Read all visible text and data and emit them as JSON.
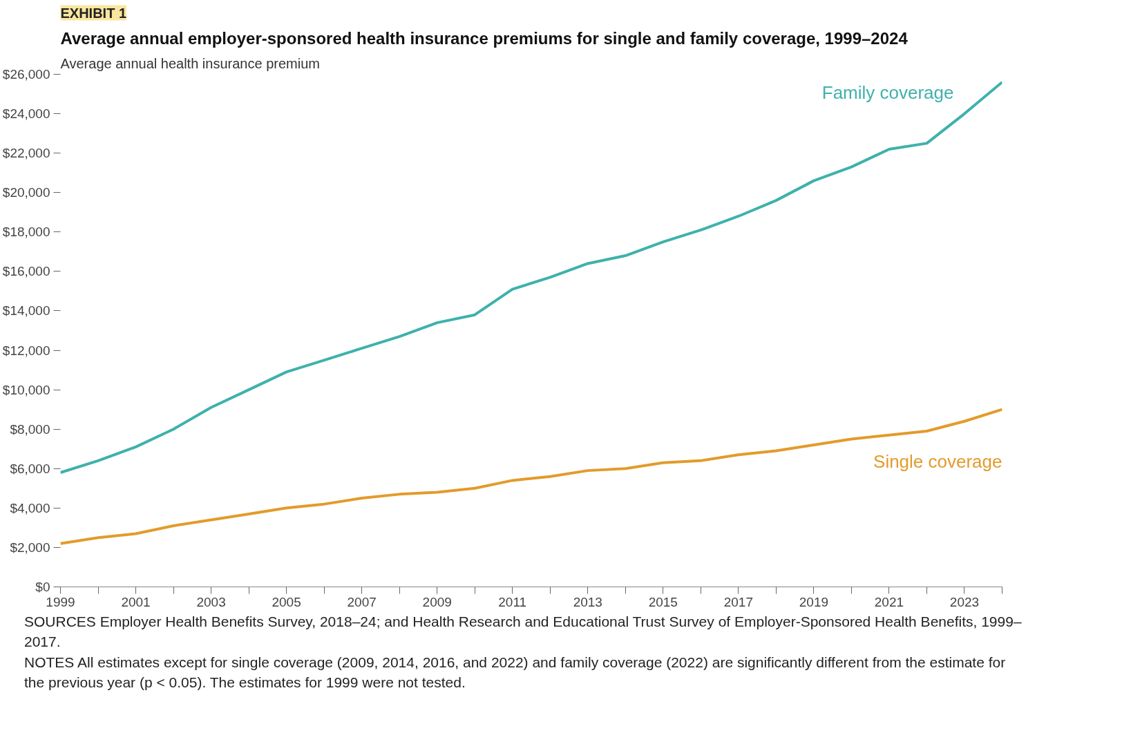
{
  "chart_data": {
    "type": "line",
    "title": "Average annual employer-sponsored health insurance premiums for single and family coverage, 1999–2024",
    "ylabel": "Average annual health insurance premium",
    "annotations": [
      "EXHIBIT 1",
      "SOURCES Employer Health Benefits Survey, 2018–24; and Health Research and Educational Trust Survey of Employer-Sponsored Health Benefits, 1999–2017.",
      "NOTES All estimates except for single coverage (2009, 2014, 2016, and 2022) and family coverage (2022) are significantly different from the estimate for the previous year (p < 0.05). The estimates for 1999 were not tested."
    ],
    "x": [
      1999,
      2000,
      2001,
      2002,
      2003,
      2004,
      2005,
      2006,
      2007,
      2008,
      2009,
      2010,
      2011,
      2012,
      2013,
      2014,
      2015,
      2016,
      2017,
      2018,
      2019,
      2020,
      2021,
      2022,
      2023,
      2024
    ],
    "series": [
      {
        "name": "Family coverage",
        "color": "#3fb1ac",
        "values": [
          5800,
          6400,
          7100,
          8000,
          9100,
          10000,
          10900,
          11500,
          12100,
          12700,
          13400,
          13800,
          15100,
          15700,
          16400,
          16800,
          17500,
          18100,
          18800,
          19600,
          20600,
          21300,
          22200,
          22500,
          24000,
          25600
        ]
      },
      {
        "name": "Single coverage",
        "color": "#e39b2b",
        "values": [
          2200,
          2500,
          2700,
          3100,
          3400,
          3700,
          4000,
          4200,
          4500,
          4700,
          4800,
          5000,
          5400,
          5600,
          5900,
          6000,
          6300,
          6400,
          6700,
          6900,
          7200,
          7500,
          7700,
          7900,
          8400,
          9000
        ]
      }
    ],
    "xlim": [
      1999,
      2024
    ],
    "ylim": [
      0,
      26000
    ],
    "xticks": [
      1999,
      {
        "value": 2000,
        "label": null
      },
      2001,
      {
        "value": 2002,
        "label": null
      },
      2003,
      {
        "value": 2004,
        "label": null
      },
      2005,
      {
        "value": 2006,
        "label": null
      },
      2007,
      {
        "value": 2008,
        "label": null
      },
      2009,
      {
        "value": 2010,
        "label": null
      },
      2011,
      {
        "value": 2012,
        "label": null
      },
      2013,
      {
        "value": 2014,
        "label": null
      },
      2015,
      {
        "value": 2016,
        "label": null
      },
      2017,
      {
        "value": 2018,
        "label": null
      },
      2019,
      {
        "value": 2020,
        "label": null
      },
      2021,
      {
        "value": 2022,
        "label": null
      },
      2023,
      {
        "value": 2024,
        "label": null
      }
    ],
    "yticks": [
      {
        "value": 0,
        "label": "$0"
      },
      {
        "value": 2000,
        "label": "$2,000"
      },
      {
        "value": 4000,
        "label": "$4,000"
      },
      {
        "value": 6000,
        "label": "$6,000"
      },
      {
        "value": 8000,
        "label": "$8,000"
      },
      {
        "value": 10000,
        "label": "$10,000"
      },
      {
        "value": 12000,
        "label": "$12,000"
      },
      {
        "value": 14000,
        "label": "$14,000"
      },
      {
        "value": 16000,
        "label": "$16,000"
      },
      {
        "value": 18000,
        "label": "$18,000"
      },
      {
        "value": 20000,
        "label": "$20,000"
      },
      {
        "value": 22000,
        "label": "$22,000"
      },
      {
        "value": 24000,
        "label": "$24,000"
      },
      {
        "value": 26000,
        "label": "$26,000"
      }
    ],
    "grid": false,
    "legend": false,
    "marker": "none",
    "line_style": "solid"
  }
}
